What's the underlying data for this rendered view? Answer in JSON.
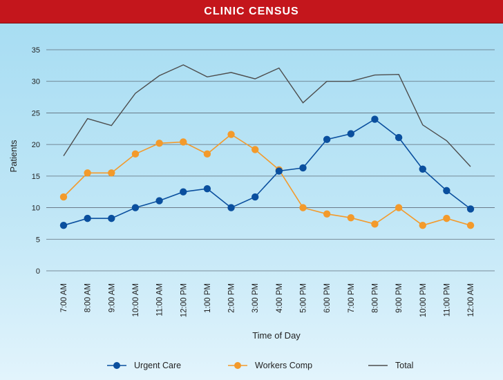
{
  "header": {
    "title": "CLINIC CENSUS"
  },
  "chart_data": {
    "type": "line",
    "title": "CLINIC CENSUS",
    "xlabel": "Time of Day",
    "ylabel": "Patients",
    "ylim": [
      0,
      35
    ],
    "yticks": [
      0,
      5,
      10,
      15,
      20,
      25,
      30,
      35
    ],
    "grid": true,
    "legend": "bottom",
    "categories": [
      "7:00 AM",
      "8:00 AM",
      "9:00 AM",
      "10:00 AM",
      "11:00 AM",
      "12:00 PM",
      "1:00 PM",
      "2:00 PM",
      "3:00 PM",
      "4:00 PM",
      "5:00 PM",
      "6:00 PM",
      "7:00 PM",
      "8:00 PM",
      "9:00 PM",
      "10:00 PM",
      "11:00 PM",
      "12:00 AM"
    ],
    "series": [
      {
        "name": "Urgent Care",
        "color": "#0a4f9e",
        "marker": true,
        "values": [
          7.2,
          8.3,
          8.3,
          10.0,
          11.1,
          12.5,
          13.0,
          10.0,
          11.7,
          15.8,
          16.3,
          20.8,
          21.7,
          24.0,
          21.1,
          16.1,
          12.7,
          9.8
        ]
      },
      {
        "name": "Workers Comp",
        "color": "#f39a2b",
        "marker": true,
        "values": [
          11.7,
          15.5,
          15.5,
          18.5,
          20.2,
          20.4,
          18.5,
          21.6,
          19.2,
          16.0,
          10.0,
          9.0,
          8.4,
          7.4,
          10.0,
          7.2,
          8.3,
          7.2
        ]
      },
      {
        "name": "Total",
        "color": "#4d4d4d",
        "marker": false,
        "values": [
          18.2,
          24.1,
          23.0,
          28.1,
          30.9,
          32.6,
          30.7,
          31.4,
          30.4,
          32.1,
          26.6,
          30.0,
          30.0,
          31.0,
          31.1,
          23.1,
          20.6,
          16.5
        ]
      }
    ]
  }
}
